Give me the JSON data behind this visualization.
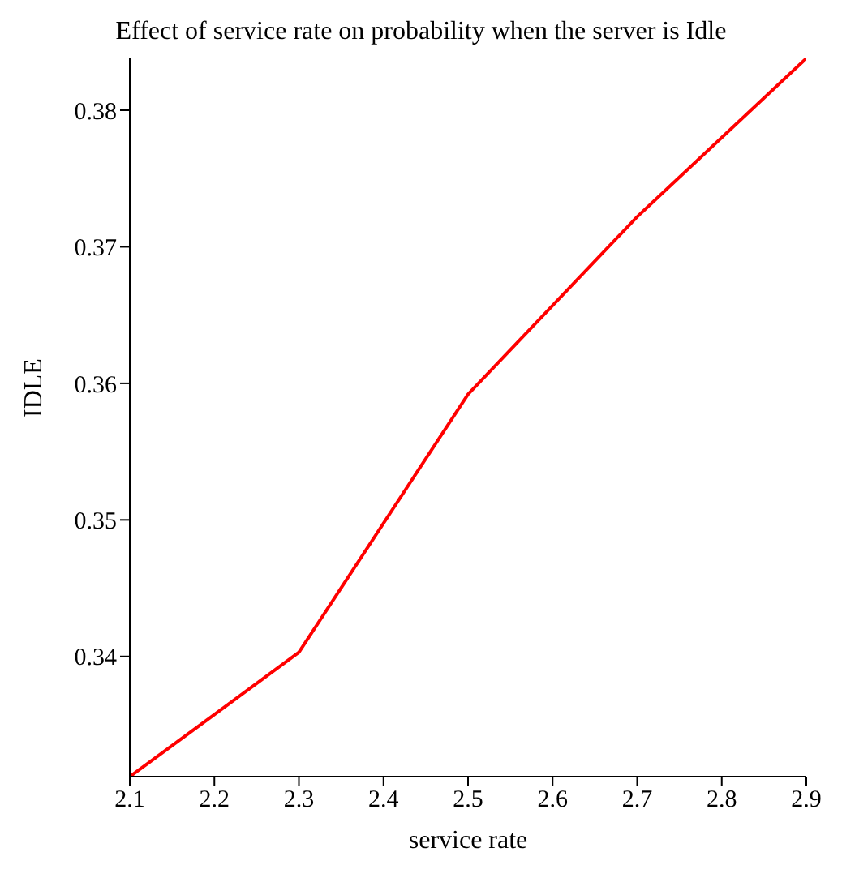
{
  "chart_data": {
    "type": "line",
    "title": "Effect of service rate on probability when the server is Idle",
    "xlabel": "service rate",
    "ylabel": "IDLE",
    "x": [
      2.1,
      2.3,
      2.5,
      2.7,
      2.9
    ],
    "series": [
      {
        "color": "#ff0000",
        "values": [
          0.3312,
          0.3403,
          0.3592,
          0.3722,
          0.3838
        ]
      }
    ],
    "xlim": [
      2.1,
      2.9
    ],
    "xticks": [
      2.1,
      2.2,
      2.3,
      2.4,
      2.5,
      2.6,
      2.7,
      2.8,
      2.9
    ],
    "ylim": [
      0.3312,
      0.3838
    ],
    "yticks": [
      0.34,
      0.35,
      0.36,
      0.37,
      0.38
    ],
    "grid": false,
    "legend": false,
    "marker": "none",
    "line_style": "solid"
  }
}
